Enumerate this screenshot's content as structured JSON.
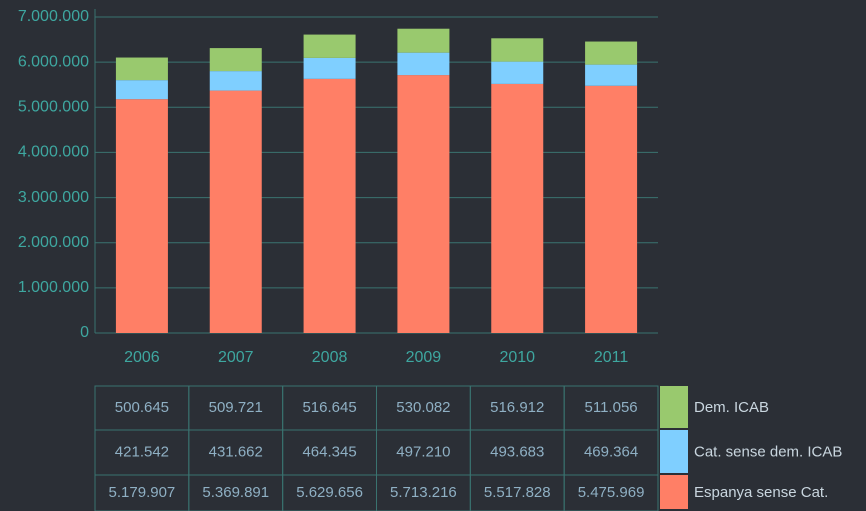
{
  "chart_data": {
    "type": "stacked_bar",
    "categories": [
      "2006",
      "2007",
      "2008",
      "2009",
      "2010",
      "2011"
    ],
    "series": [
      {
        "name": "Espanya sense Cat.",
        "color": "#ff7f66",
        "values": [
          5179907,
          5369891,
          5629656,
          5713216,
          5517828,
          5475969
        ],
        "value_labels": [
          "5.179.907",
          "5.369.891",
          "5.629.656",
          "5.713.216",
          "5.517.828",
          "5.475.969"
        ]
      },
      {
        "name": "Cat. sense dem. ICAB",
        "color": "#7fcfff",
        "values": [
          421542,
          431662,
          464345,
          497210,
          493683,
          469364
        ],
        "value_labels": [
          "421.542",
          "431.662",
          "464.345",
          "497.210",
          "493.683",
          "469.364"
        ]
      },
      {
        "name": "Dem. ICAB",
        "color": "#99c96e",
        "values": [
          500645,
          509721,
          516645,
          530082,
          516912,
          511056
        ],
        "value_labels": [
          "500.645",
          "509.721",
          "516.645",
          "530.082",
          "516.912",
          "511.056"
        ]
      }
    ],
    "ylim": [
      0,
      7000000
    ],
    "yticks": [
      0,
      {
        "value": 1000000,
        "label": "1.000.000"
      },
      {
        "value": 2000000,
        "label": "2.000.000"
      },
      {
        "value": 3000000,
        "label": "3.000.000"
      },
      {
        "value": 4000000,
        "label": "4.000.000"
      },
      {
        "value": 5000000,
        "label": "5.000.000"
      },
      {
        "value": 6000000,
        "label": "6.000.000"
      },
      {
        "value": 7000000,
        "label": "7.000.000"
      }
    ],
    "grid": true
  }
}
